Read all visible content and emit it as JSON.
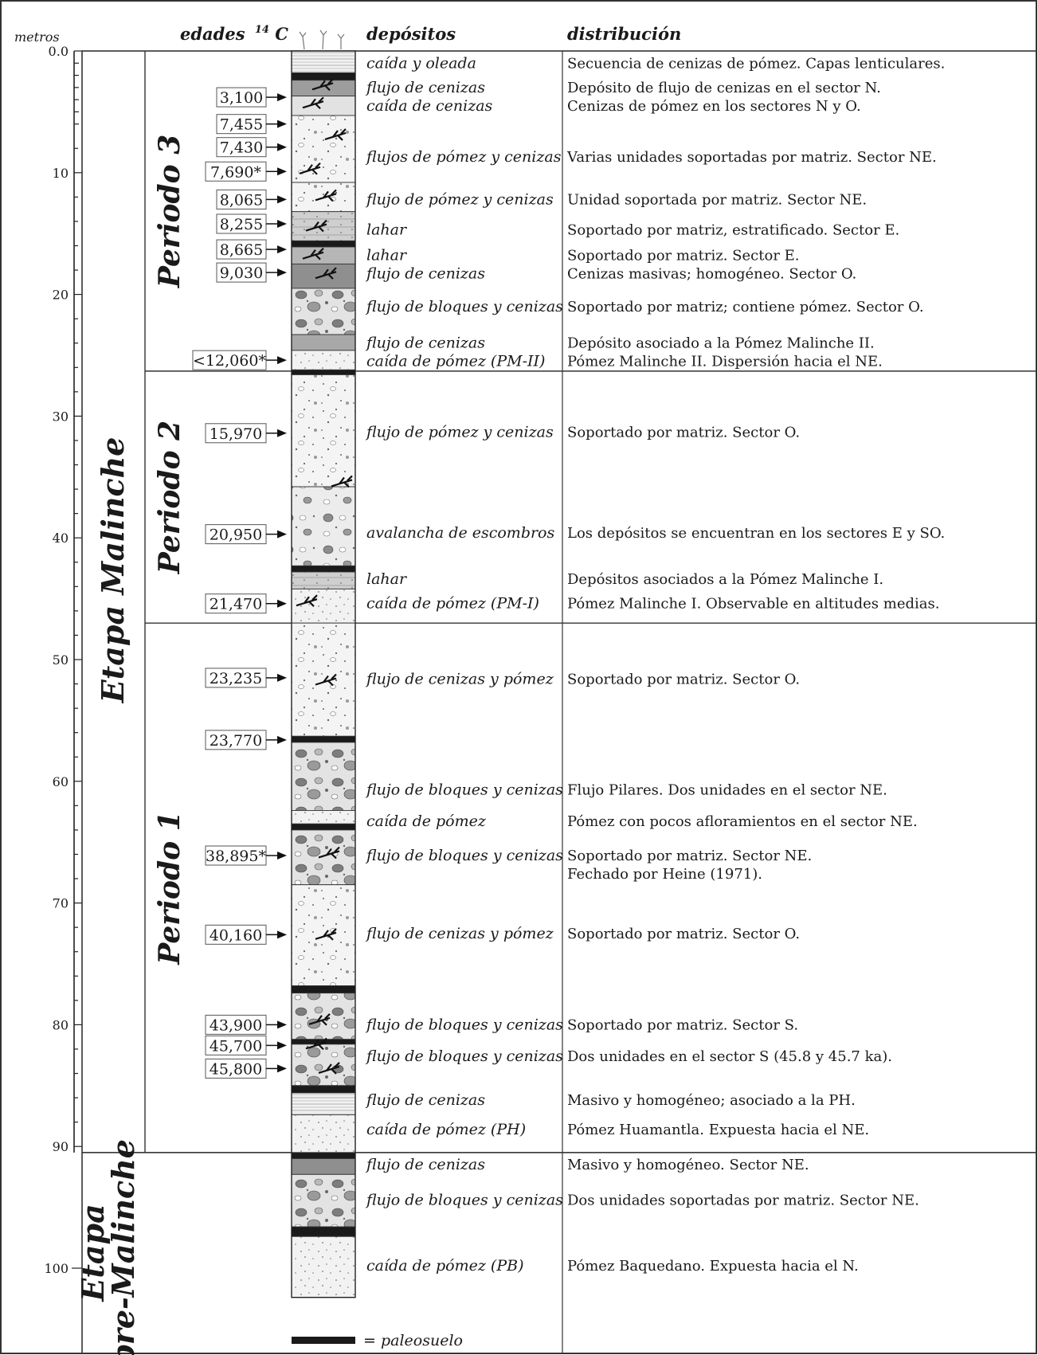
{
  "headers": {
    "metros": "metros",
    "edades": "edades",
    "edades_sup": "14",
    "edades_c": "C",
    "depositos": "depósitos",
    "distribucion": "distribución"
  },
  "depth_axis": {
    "min": 0,
    "max": 105,
    "labels": [
      "0.0",
      "10",
      "20",
      "30",
      "40",
      "50",
      "60",
      "70",
      "80",
      "90",
      "100"
    ],
    "values": [
      0,
      10,
      20,
      30,
      40,
      50,
      60,
      70,
      80,
      90,
      100
    ]
  },
  "stages": [
    {
      "label": "Etapa Malinche",
      "from": 0,
      "to": 90.5
    },
    {
      "label_lines": [
        "Etapa",
        "pre-Malinche"
      ],
      "from": 90.5,
      "to": 105
    }
  ],
  "periods": [
    {
      "label": "Periodo 3",
      "from": 0,
      "to": 26.3
    },
    {
      "label": "Periodo 2",
      "from": 26.3,
      "to": 47
    },
    {
      "label": "Periodo 1",
      "from": 47,
      "to": 90.5
    }
  ],
  "rows": [
    {
      "d": 1.0,
      "deposito": "caída y oleada",
      "distribucion": "Secuencia de cenizas de pómez. Capas lenticulares."
    },
    {
      "d": 3.0,
      "deposito": "flujo de cenizas",
      "distribucion": "Depósito de flujo de cenizas en el sector N."
    },
    {
      "d": 4.5,
      "deposito": "caída de cenizas",
      "distribucion": "Cenizas de pómez en los sectores N y O."
    },
    {
      "d": 8.7,
      "deposito": "flujos de pómez y cenizas",
      "distribucion": "Varias unidades soportadas por matriz. Sector NE."
    },
    {
      "d": 12.2,
      "deposito": "flujo de pómez y cenizas",
      "distribucion": "Unidad soportada por matriz. Sector NE."
    },
    {
      "d": 14.7,
      "deposito": "lahar",
      "distribucion": "Soportado por matriz, estratificado. Sector E."
    },
    {
      "d": 16.8,
      "deposito": "lahar",
      "distribucion": "Soportado por matriz. Sector E."
    },
    {
      "d": 18.3,
      "deposito": "flujo de cenizas",
      "distribucion": "Cenizas masivas; homogéneo. Sector O."
    },
    {
      "d": 21.0,
      "deposito": "flujo de bloques y cenizas",
      "distribucion": "Soportado por matriz; contiene pómez. Sector O."
    },
    {
      "d": 24.0,
      "deposito": "flujo de cenizas",
      "distribucion": "Depósito asociado a la Pómez Malinche II."
    },
    {
      "d": 25.5,
      "deposito": "caída de pómez (PM-II)",
      "distribucion": "Pómez Malinche II. Dispersión hacia el NE."
    },
    {
      "d": 31.3,
      "deposito": "flujo de pómez y cenizas",
      "distribucion": "Soportado por matriz. Sector O."
    },
    {
      "d": 39.6,
      "deposito": "avalancha de escombros",
      "distribucion": "Los depósitos se encuentran en los sectores E y SO."
    },
    {
      "d": 43.4,
      "deposito": "lahar",
      "distribucion": "Depósitos asociados a la Pómez Malinche I."
    },
    {
      "d": 45.4,
      "deposito": "caída de pómez (PM-I)",
      "distribucion": "Pómez Malinche I. Observable en altitudes medias."
    },
    {
      "d": 51.6,
      "deposito": "flujo de cenizas y pómez",
      "distribucion": "Soportado por matriz. Sector O."
    },
    {
      "d": 60.7,
      "deposito": "flujo de bloques y cenizas",
      "distribucion": "Flujo Pilares. Dos unidades en el sector NE."
    },
    {
      "d": 63.3,
      "deposito": "caída de pómez",
      "distribucion": "Pómez con pocos afloramientos en el sector NE."
    },
    {
      "d": 66.1,
      "deposito": "flujo de bloques y cenizas",
      "distribucion": "Soportado por matriz. Sector NE."
    },
    {
      "d": 67.6,
      "deposito": "",
      "distribucion": "Fechado por Heine (1971)."
    },
    {
      "d": 72.5,
      "deposito": "flujo de cenizas y pómez",
      "distribucion": "Soportado por matriz. Sector O."
    },
    {
      "d": 80.0,
      "deposito": "flujo de bloques y cenizas",
      "distribucion": "Soportado por matriz. Sector S."
    },
    {
      "d": 82.6,
      "deposito": "flujo de bloques y cenizas",
      "distribucion": "Dos unidades en el sector S (45.8 y 45.7 ka)."
    },
    {
      "d": 86.2,
      "deposito": "flujo de cenizas",
      "distribucion": "Masivo y homogéneo; asociado a la PH."
    },
    {
      "d": 88.6,
      "deposito": "caída de pómez (PH)",
      "distribucion": "Pómez Huamantla. Expuesta hacia el NE."
    },
    {
      "d": 91.5,
      "deposito": "flujo de cenizas",
      "distribucion": "Masivo y homogéneo. Sector NE."
    },
    {
      "d": 94.4,
      "deposito": "flujo de bloques y cenizas",
      "distribucion": "Dos unidades soportadas por matriz. Sector NE."
    },
    {
      "d": 99.8,
      "deposito": "caída de pómez (PB)",
      "distribucion": "Pómez Baquedano. Expuesta hacia el N."
    }
  ],
  "ages": [
    {
      "label": "3,100",
      "d": 3.8
    },
    {
      "label": "7,455",
      "d": 6.0
    },
    {
      "label": "7,430",
      "d": 7.9
    },
    {
      "label": "7,690*",
      "d": 9.9
    },
    {
      "label": "8,065",
      "d": 12.2
    },
    {
      "label": "8,255",
      "d": 14.2
    },
    {
      "label": "8,665",
      "d": 16.3
    },
    {
      "label": "9,030",
      "d": 18.2
    },
    {
      "label": "<12,060*",
      "d": 25.4
    },
    {
      "label": "15,970",
      "d": 31.4
    },
    {
      "label": "20,950",
      "d": 39.7
    },
    {
      "label": "21,470",
      "d": 45.4
    },
    {
      "label": "23,235",
      "d": 51.5
    },
    {
      "label": "23,770",
      "d": 56.6
    },
    {
      "label": "38,895*",
      "d": 66.1
    },
    {
      "label": "40,160",
      "d": 72.6
    },
    {
      "label": "43,900",
      "d": 80.0
    },
    {
      "label": "45,700",
      "d": 81.7
    },
    {
      "label": "45,800",
      "d": 83.6
    }
  ],
  "legend": {
    "label": "= paleosuelo"
  },
  "colors": {
    "paleosuelo": "#1a1a1a",
    "fine": "#e8e8e8",
    "mid": "#bdbdbd",
    "dark": "#8a8a8a",
    "clast": "#7a7a7a"
  }
}
